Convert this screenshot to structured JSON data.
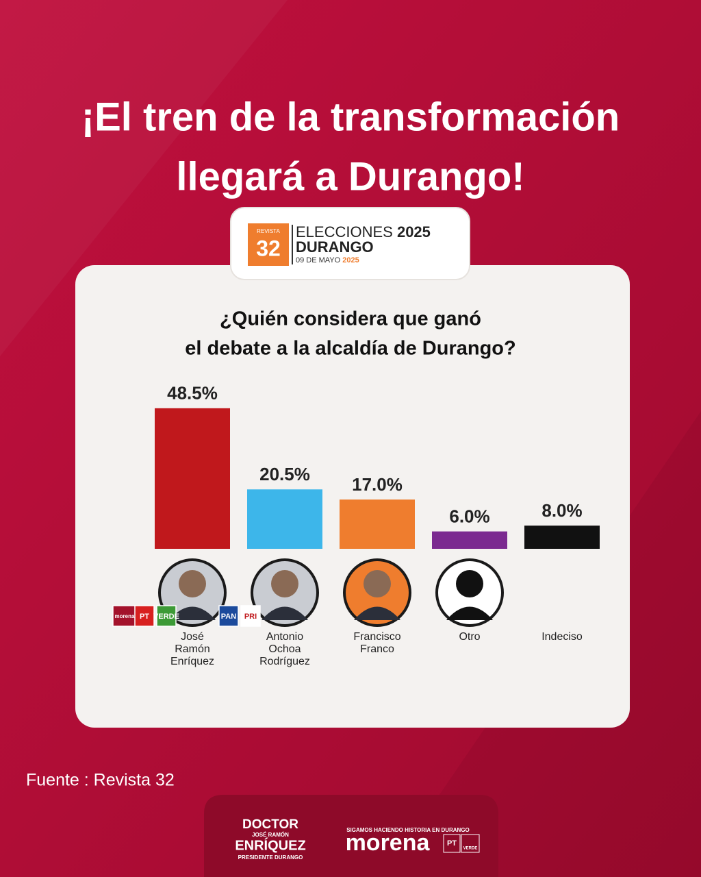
{
  "header": {
    "title_lines": [
      "¡El tren de la transformación",
      "llegará a Durango!"
    ]
  },
  "badge": {
    "brand_small": "REVISTA",
    "brand_number": "32",
    "line1": "ELECCIONES",
    "line1_year": "2025",
    "line2": "DURANGO",
    "date": "09 DE MAYO",
    "date_year": "2025"
  },
  "chart_data": {
    "type": "bar",
    "title_lines": [
      "¿Quién considera que ganó",
      "el debate a la alcaldía de Durango?"
    ],
    "categories": [
      [
        "José",
        "Ramón",
        "Enríquez"
      ],
      [
        "Antonio",
        "Ochoa",
        "Rodríguez"
      ],
      [
        "Francisco",
        "Franco"
      ],
      [
        "Otro"
      ],
      [
        "Indeciso"
      ]
    ],
    "values": [
      48.5,
      20.5,
      17.0,
      6.0,
      8.0
    ],
    "value_labels": [
      "48.5%",
      "20.5%",
      "17.0%",
      "6.0%",
      "8.0%"
    ],
    "colors": [
      "#c0181c",
      "#3db6ea",
      "#ef7d2e",
      "#7b2a90",
      "#111111"
    ],
    "party_logos": [
      [
        "morena",
        "PT",
        "VERDE"
      ],
      [
        "PAN",
        "PRI"
      ],
      [],
      [],
      []
    ]
  },
  "source": "Fuente : Revista 32",
  "footer": {
    "doctor": "DOCTOR",
    "name_small": "JOSÉ RAMÓN",
    "surname": "ENRÍQUEZ",
    "role": "PRESIDENTE DURANGO",
    "slogan": "SIGAMOS HACIENDO HISTORIA EN DURANGO",
    "party": "morena",
    "pt": "PT",
    "verde": "VERDE"
  }
}
